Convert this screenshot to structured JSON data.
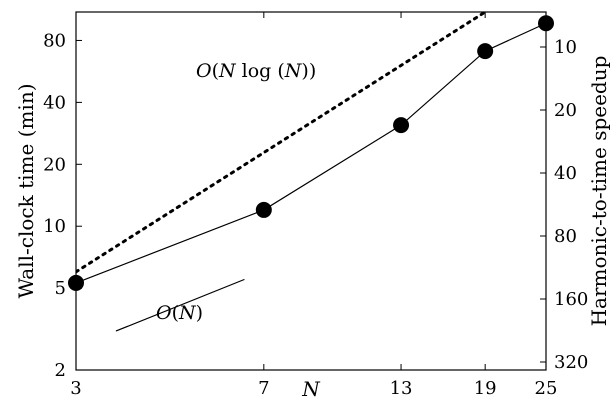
{
  "chart_data": {
    "type": "line",
    "xscale": "log",
    "yscale": "log",
    "xlabel": "N",
    "ylabel": "Wall-clock time (min)",
    "y2label": "Harmonic-to-time speedup",
    "xlim": [
      3,
      25
    ],
    "ylim": [
      2,
      110
    ],
    "x_ticks": [
      3,
      7,
      13,
      19,
      25
    ],
    "y_ticks": [
      2,
      5,
      10,
      20,
      40,
      80
    ],
    "y2_ticks": [
      10,
      20,
      40,
      80,
      160,
      320
    ],
    "series": [
      {
        "x": [
          3,
          7,
          13,
          19,
          25
        ],
        "y": [
          5.3,
          12,
          31,
          71,
          97
        ],
        "style": "solid-markers"
      }
    ],
    "reference_lines": [
      {
        "label": "O(N log (N))",
        "style": "dotted",
        "x": [
          3,
          19
        ],
        "y": [
          6,
          110
        ]
      },
      {
        "label": "O(N)",
        "style": "solid",
        "x": [
          3.6,
          6.4
        ],
        "y": [
          3.1,
          5.5
        ]
      }
    ]
  }
}
